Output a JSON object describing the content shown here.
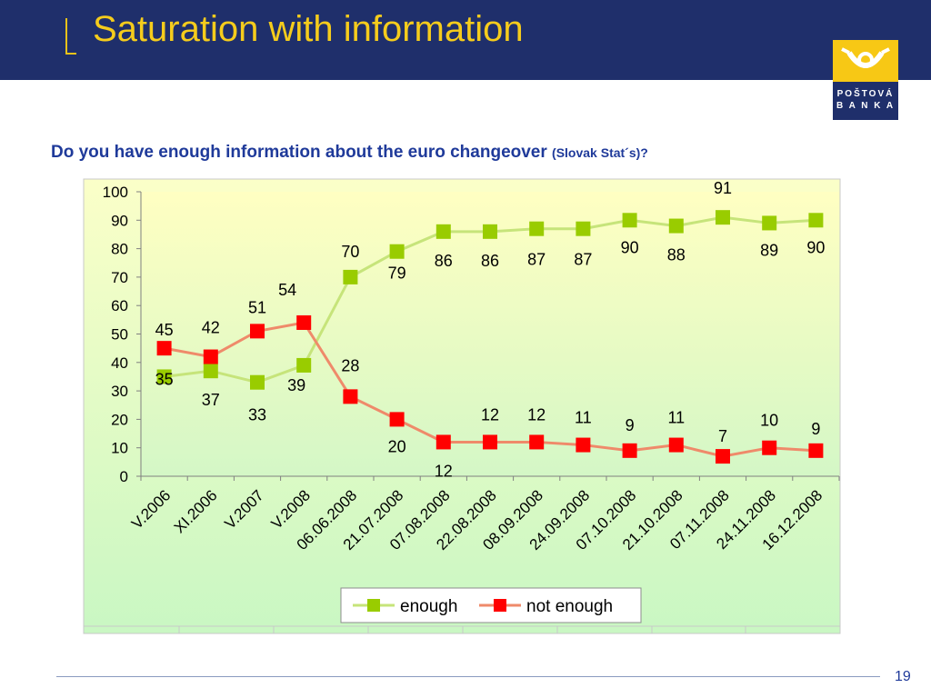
{
  "header": {
    "title": "Saturation with information"
  },
  "logo": {
    "line1": "POŠTOVÁ",
    "line2": "B A N K A"
  },
  "question": {
    "main": "Do you have enough information about the euro changeover ",
    "sub": "(Slovak Stat´s)?"
  },
  "footer": {
    "page_number": "19"
  },
  "chart_data": {
    "type": "line",
    "categories": [
      "V.2006",
      "XI.2006",
      "V.2007",
      "V.2008",
      "06.06.2008",
      "21.07.2008",
      "07.08.2008",
      "22.08.2008",
      "08.09.2008",
      "24.09.2008",
      "07.10.2008",
      "21.10.2008",
      "07.11.2008",
      "24.11.2008",
      "16.12.2008"
    ],
    "ylim": [
      0,
      100
    ],
    "yticks": [
      0,
      10,
      20,
      30,
      40,
      50,
      60,
      70,
      80,
      90,
      100
    ],
    "legend_position": "bottom-center",
    "series": [
      {
        "name": "enough",
        "color": "#99cc00",
        "line_color": "#c6e47a",
        "values": [
          35,
          37,
          33,
          39,
          70,
          79,
          86,
          86,
          87,
          87,
          90,
          88,
          91,
          89,
          90
        ]
      },
      {
        "name": "not enough",
        "color": "#ff0000",
        "line_color": "#ef8a6a",
        "values": [
          45,
          42,
          51,
          54,
          28,
          20,
          12,
          12,
          12,
          11,
          9,
          11,
          7,
          10,
          9
        ]
      }
    ]
  }
}
